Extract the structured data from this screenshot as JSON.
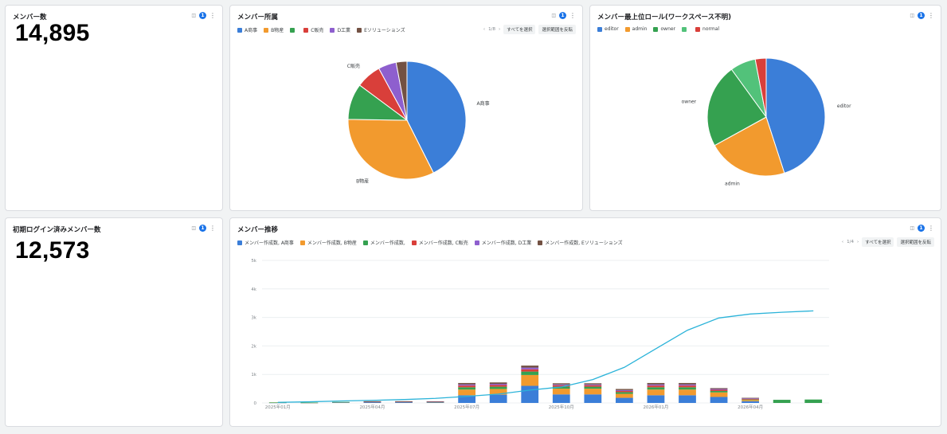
{
  "cards": {
    "members": {
      "title": "メンバー数",
      "value": "14,895",
      "filter_count": "1"
    },
    "affiliation": {
      "title": "メンバー所属",
      "filter_count": "1",
      "pager": "1/8",
      "select_all": "すべてを選択",
      "invert": "選択範囲を反転"
    },
    "role": {
      "title": "メンバー最上位ロール(ワークスペース不明)",
      "filter_count": "1"
    },
    "logged_in": {
      "title": "初期ログイン済みメンバー数",
      "value": "12,573",
      "filter_count": "1"
    },
    "trend": {
      "title": "メンバー推移",
      "filter_count": "1",
      "pager": "1/4",
      "select_all": "すべてを選択",
      "invert": "選択範囲を反転"
    }
  },
  "icons": {
    "filter": "filter-icon",
    "more": "more-vert-icon"
  },
  "chart_data": [
    {
      "type": "pie",
      "title": "メンバー所属",
      "legend_placement": "top-left",
      "labels": [
        "A商事",
        "B物産",
        "",
        "C販売",
        "D工業",
        "Eソリューションズ"
      ],
      "values": [
        43,
        33,
        10,
        7,
        5,
        3
      ],
      "colors": [
        "#3b7ed8",
        "#f29a2e",
        "#35a150",
        "#d93f3a",
        "#8e5fce",
        "#735143"
      ],
      "slice_labels": [
        {
          "text": "A商事",
          "index": 0
        },
        {
          "text": "B物産",
          "index": 1
        },
        {
          "text": "C販売",
          "index": 3
        }
      ]
    },
    {
      "type": "pie",
      "title": "メンバー最上位ロール(ワークスペース不明)",
      "legend_placement": "top-left",
      "labels": [
        "editor",
        "admin",
        "owner",
        "",
        "normal"
      ],
      "values": [
        45,
        22,
        23,
        7,
        3
      ],
      "colors": [
        "#3b7ed8",
        "#f29a2e",
        "#35a150",
        "#52c27a",
        "#d93f3a"
      ],
      "slice_labels": [
        {
          "text": "editor",
          "index": 0
        },
        {
          "text": "admin",
          "index": 1
        },
        {
          "text": "owner",
          "index": 2
        }
      ]
    },
    {
      "type": "bar",
      "stacked": true,
      "title": "メンバー推移",
      "legend_placement": "top-left",
      "ylim": [
        0,
        5000
      ],
      "yticks": [
        0,
        1000,
        2000,
        3000,
        4000,
        5000
      ],
      "ytick_labels": [
        "0",
        "1k",
        "2k",
        "3k",
        "4k",
        "5k"
      ],
      "x_labels": [
        {
          "index": 0,
          "text": "2025年01月"
        },
        {
          "index": 3,
          "text": "2025年04月"
        },
        {
          "index": 6,
          "text": "2025年07月"
        },
        {
          "index": 9,
          "text": "2025年10月"
        },
        {
          "index": 12,
          "text": "2026年01月"
        },
        {
          "index": 15,
          "text": "2026年04月"
        }
      ],
      "periods": 18,
      "series": [
        {
          "name": "メンバー作成数, A商事",
          "color": "#3b7ed8",
          "values": [
            10,
            5,
            20,
            30,
            30,
            20,
            270,
            290,
            600,
            300,
            300,
            180,
            270,
            270,
            210,
            60,
            0,
            0
          ]
        },
        {
          "name": "メンバー作成数, B物産",
          "color": "#f29a2e",
          "values": [
            5,
            5,
            10,
            10,
            10,
            15,
            200,
            200,
            380,
            200,
            200,
            140,
            200,
            200,
            160,
            40,
            0,
            0
          ]
        },
        {
          "name": "メンバー作成数,",
          "color": "#35a150",
          "values": [
            5,
            5,
            5,
            5,
            5,
            5,
            80,
            80,
            120,
            70,
            70,
            60,
            80,
            80,
            50,
            20,
            110,
            120
          ]
        },
        {
          "name": "メンバー作成数, C販売",
          "color": "#d93f3a",
          "values": [
            0,
            0,
            0,
            5,
            5,
            5,
            60,
            60,
            80,
            50,
            50,
            40,
            60,
            60,
            40,
            20,
            0,
            0
          ]
        },
        {
          "name": "メンバー作成数, D工業",
          "color": "#8e5fce",
          "values": [
            0,
            0,
            0,
            5,
            5,
            5,
            40,
            40,
            60,
            30,
            30,
            30,
            40,
            40,
            30,
            20,
            0,
            0
          ]
        },
        {
          "name": "メンバー作成数, Eソリューションズ",
          "color": "#735143",
          "values": [
            0,
            0,
            0,
            5,
            5,
            5,
            50,
            50,
            70,
            40,
            40,
            40,
            50,
            50,
            30,
            20,
            0,
            0
          ]
        }
      ],
      "line": {
        "color": "#2bb3d9",
        "values": [
          20,
          40,
          70,
          90,
          120,
          160,
          230,
          310,
          450,
          560,
          820,
          1250,
          1900,
          2550,
          2980,
          3120,
          3180,
          3230
        ]
      }
    }
  ]
}
